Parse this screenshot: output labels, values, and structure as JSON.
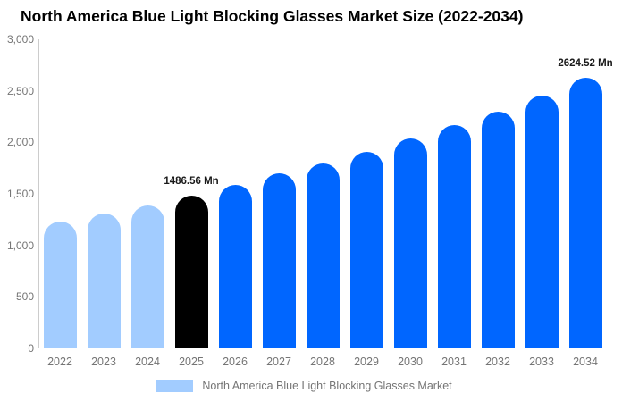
{
  "title": "North America Blue Light Blocking Glasses Market Size (2022-2034)",
  "colors": {
    "historical": "#a2ccff",
    "highlight": "#000000",
    "forecast": "#0066ff",
    "axis_line": "#cccccc",
    "tick_text": "#757575",
    "title_text": "#000000"
  },
  "legend": {
    "label": "North America Blue Light Blocking Glasses Market"
  },
  "chart_data": {
    "type": "bar",
    "title": "North America Blue Light Blocking Glasses Market Size (2022-2034)",
    "xlabel": "",
    "ylabel": "",
    "unit": "Mn",
    "ylim": [
      0,
      3000
    ],
    "grid": false,
    "legend_position": "bottom",
    "yticks": [
      {
        "value": 0,
        "label": "0"
      },
      {
        "value": 500,
        "label": "500"
      },
      {
        "value": 1000,
        "label": "1,000"
      },
      {
        "value": 1500,
        "label": "1,500"
      },
      {
        "value": 2000,
        "label": "2,000"
      },
      {
        "value": 2500,
        "label": "2,500"
      },
      {
        "value": 3000,
        "label": "3,000"
      }
    ],
    "points": [
      {
        "year": "2022",
        "value": 1235,
        "segment": "historical"
      },
      {
        "year": "2023",
        "value": 1312,
        "segment": "historical"
      },
      {
        "year": "2024",
        "value": 1390,
        "segment": "historical"
      },
      {
        "year": "2025",
        "value": 1486.56,
        "segment": "highlight",
        "label": "1486.56 Mn"
      },
      {
        "year": "2026",
        "value": 1583,
        "segment": "forecast"
      },
      {
        "year": "2027",
        "value": 1698,
        "segment": "forecast"
      },
      {
        "year": "2028",
        "value": 1797,
        "segment": "forecast"
      },
      {
        "year": "2029",
        "value": 1905,
        "segment": "forecast"
      },
      {
        "year": "2030",
        "value": 2038,
        "segment": "forecast"
      },
      {
        "year": "2031",
        "value": 2172,
        "segment": "forecast"
      },
      {
        "year": "2032",
        "value": 2300,
        "segment": "forecast"
      },
      {
        "year": "2033",
        "value": 2458,
        "segment": "forecast"
      },
      {
        "year": "2034",
        "value": 2624.52,
        "segment": "forecast",
        "label": "2624.52 Mn"
      }
    ]
  }
}
